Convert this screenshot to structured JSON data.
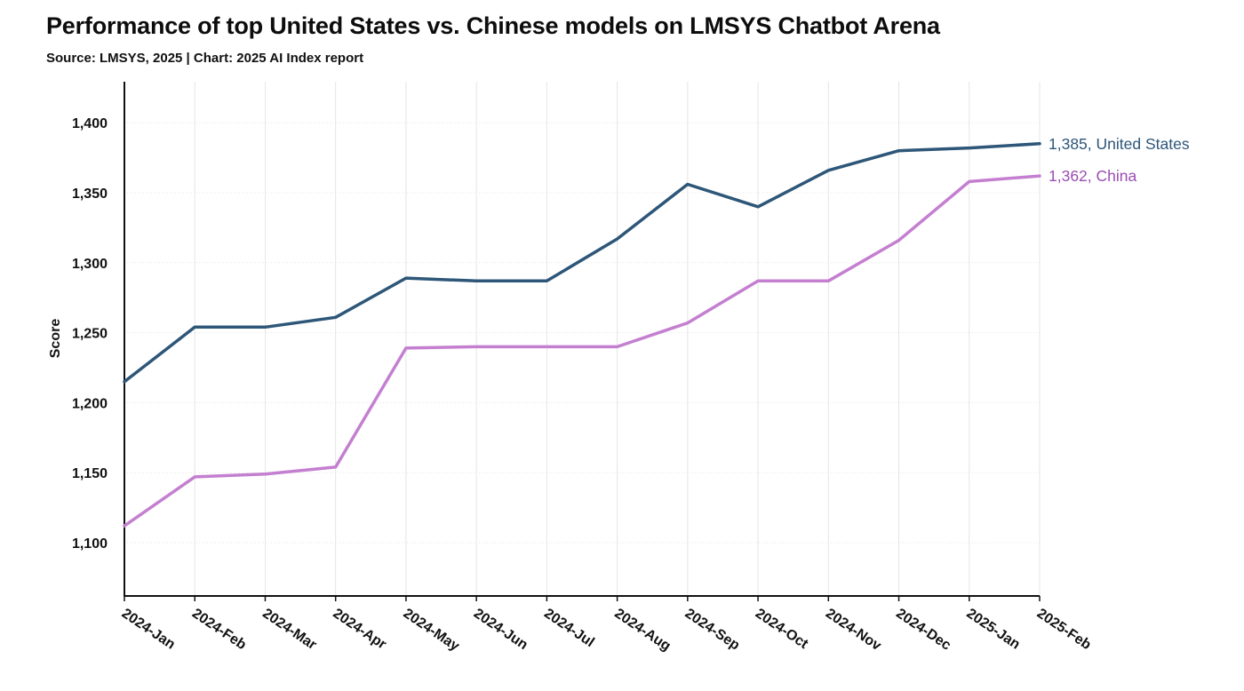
{
  "chart_data": {
    "type": "line",
    "title": "Performance of top United States vs. Chinese models on LMSYS Chatbot Arena",
    "subtitle": "Source: LMSYS, 2025 | Chart: 2025 AI Index report",
    "xlabel": "",
    "ylabel": "Score",
    "categories": [
      "2024-Jan",
      "2024-Feb",
      "2024-Mar",
      "2024-Apr",
      "2024-May",
      "2024-Jun",
      "2024-Jul",
      "2024-Aug",
      "2024-Sep",
      "2024-Oct",
      "2024-Nov",
      "2024-Dec",
      "2025-Jan",
      "2025-Feb"
    ],
    "ylim": [
      1063,
      1430
    ],
    "yticks": [
      1100,
      1150,
      1200,
      1250,
      1300,
      1350,
      1400
    ],
    "ytick_labels": [
      "1,100",
      "1,150",
      "1,200",
      "1,250",
      "1,300",
      "1,350",
      "1,400"
    ],
    "grid": true,
    "series": [
      {
        "name": "United States",
        "color": "#2d5678",
        "values": [
          1215,
          1254,
          1254,
          1261,
          1289,
          1287,
          1287,
          1317,
          1356,
          1340,
          1366,
          1380,
          1382,
          1385
        ],
        "end_label": "1,385, United States"
      },
      {
        "name": "China",
        "color": "#c47fd0",
        "label_color": "#9b4db3",
        "values": [
          1112,
          1147,
          1149,
          1154,
          1239,
          1240,
          1240,
          1240,
          1257,
          1287,
          1287,
          1316,
          1358,
          1362
        ],
        "end_label": "1,362, China"
      }
    ]
  }
}
